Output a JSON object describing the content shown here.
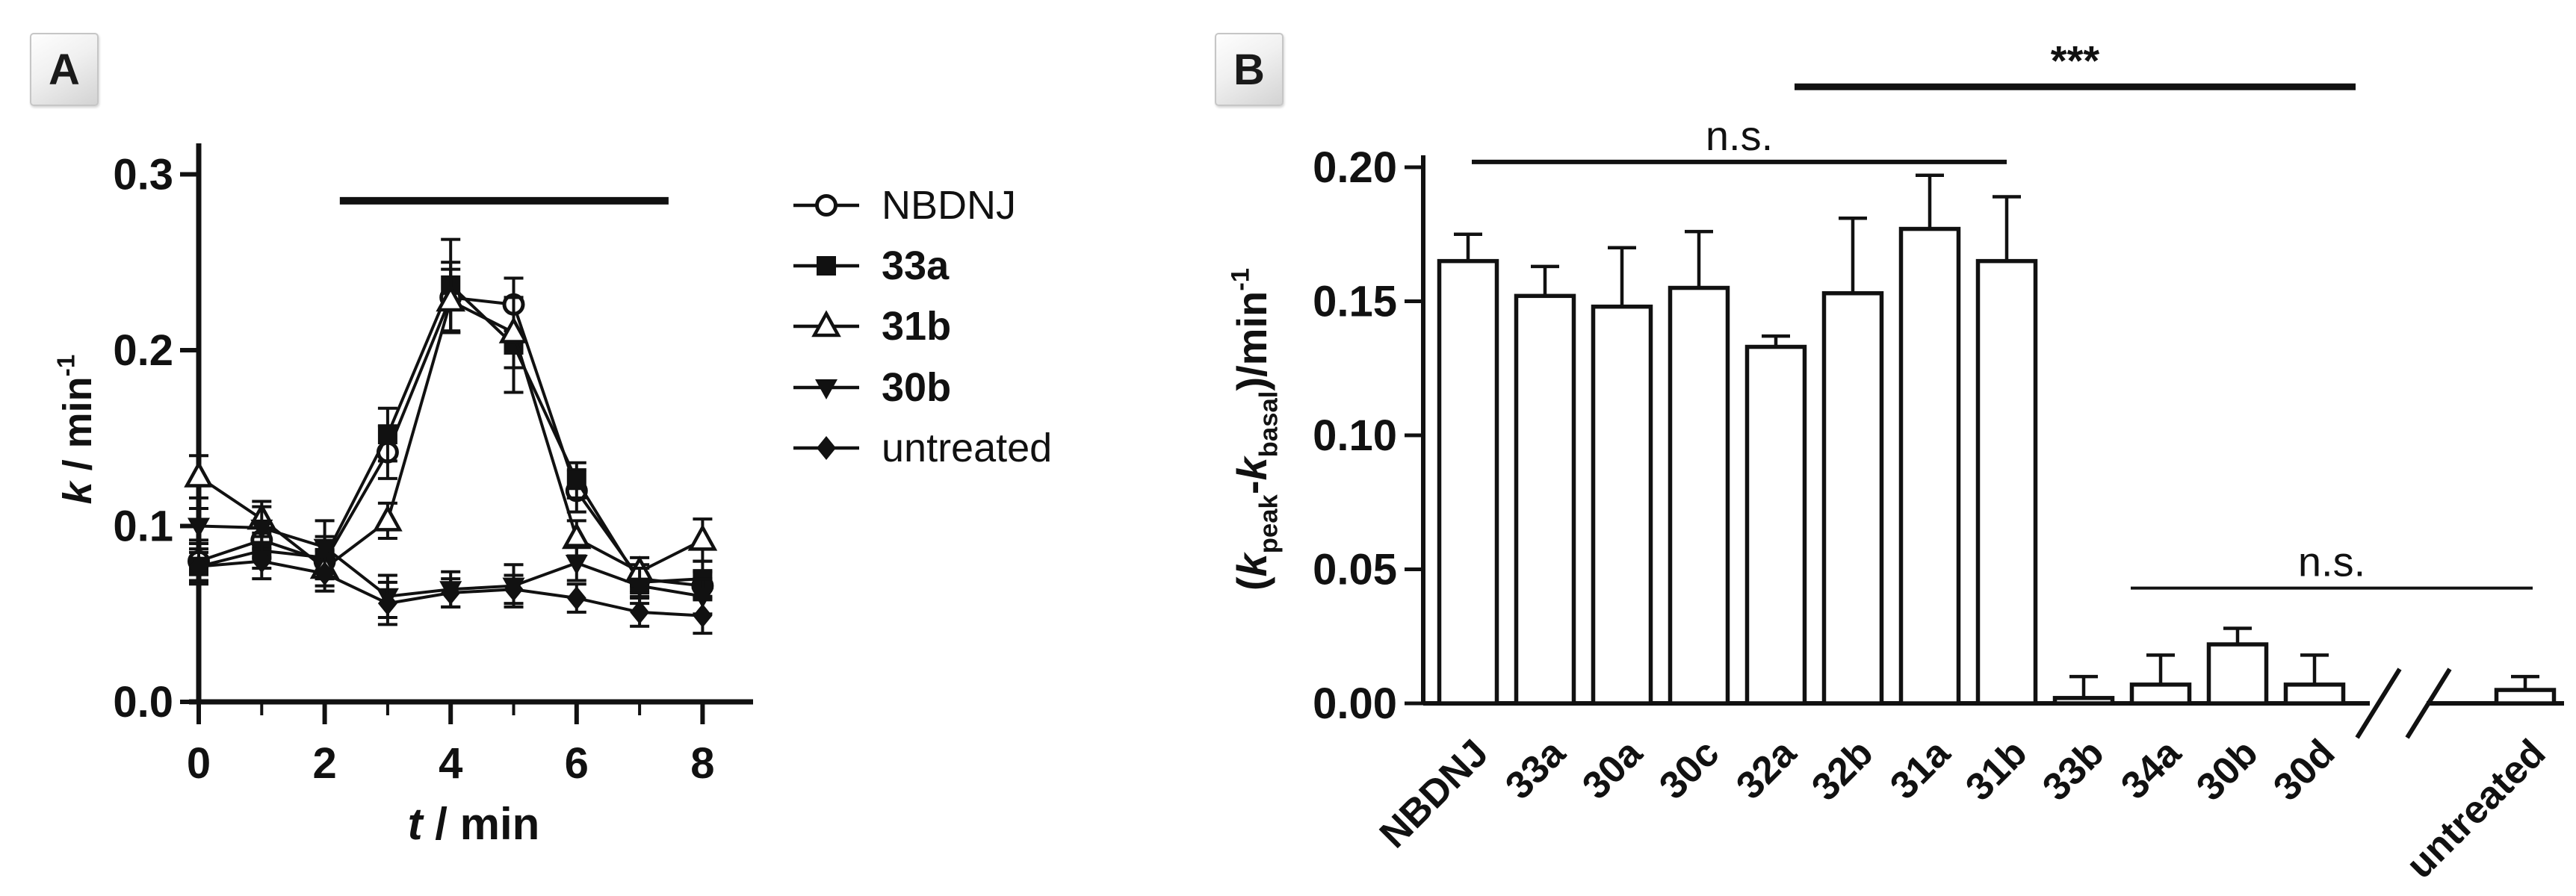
{
  "figure": {
    "background": "#ffffff",
    "ink_color": "#111111",
    "panel_a_label": "A",
    "panel_b_label": "B"
  },
  "chart_data": [
    {
      "type": "line",
      "panel": "A",
      "title": "",
      "xlabel_rich": [
        {
          "t": "t",
          "k": "italic"
        },
        {
          "t": " / min",
          "k": "normal"
        }
      ],
      "ylabel_rich": [
        {
          "t": "k",
          "k": "italic"
        },
        {
          "t": " / min",
          "k": "normal"
        },
        {
          "t": "-1",
          "k": "sup"
        }
      ],
      "x": [
        0,
        1,
        2,
        3,
        4,
        5,
        6,
        7,
        8
      ],
      "xticks": [
        0,
        2,
        4,
        6,
        8
      ],
      "xticks_minor": [
        1,
        3,
        5,
        7
      ],
      "yticks": [
        0.0,
        0.1,
        0.2,
        0.3
      ],
      "xlim": [
        0,
        8.8
      ],
      "ylim": [
        0,
        0.3
      ],
      "grid": false,
      "treatment_bar": {
        "t_start": 2.24,
        "t_end": 7.46,
        "k": 0.285
      },
      "series": [
        {
          "name": "NBDNJ",
          "marker": "open-circle",
          "bold": false,
          "values": [
            0.08,
            0.092,
            0.08,
            0.142,
            0.23,
            0.226,
            0.12,
            0.07,
            0.066
          ],
          "errors": [
            0.012,
            0.01,
            0.01,
            0.015,
            0.02,
            0.015,
            0.012,
            0.008,
            0.008
          ]
        },
        {
          "name": "33a",
          "marker": "filled-square",
          "bold": true,
          "values": [
            0.077,
            0.086,
            0.082,
            0.152,
            0.237,
            0.203,
            0.126,
            0.068,
            0.07
          ],
          "errors": [
            0.01,
            0.01,
            0.012,
            0.015,
            0.026,
            0.027,
            0.01,
            0.008,
            0.01
          ]
        },
        {
          "name": "31b",
          "marker": "open-triangle",
          "bold": true,
          "values": [
            0.128,
            0.104,
            0.076,
            0.103,
            0.228,
            0.21,
            0.093,
            0.074,
            0.092
          ],
          "errors": [
            0.012,
            0.01,
            0.01,
            0.01,
            0.018,
            0.02,
            0.01,
            0.008,
            0.012
          ]
        },
        {
          "name": "30b",
          "marker": "filled-triangle-down",
          "bold": true,
          "values": [
            0.1,
            0.099,
            0.088,
            0.06,
            0.064,
            0.066,
            0.079,
            0.066,
            0.06
          ],
          "errors": [
            0.01,
            0.012,
            0.015,
            0.012,
            0.01,
            0.012,
            0.01,
            0.01,
            0.01
          ]
        },
        {
          "name": "untreated",
          "marker": "filled-diamond",
          "bold": false,
          "values": [
            0.077,
            0.08,
            0.073,
            0.056,
            0.062,
            0.064,
            0.059,
            0.051,
            0.049
          ],
          "errors": [
            0.008,
            0.01,
            0.01,
            0.012,
            0.008,
            0.008,
            0.008,
            0.008,
            0.01
          ]
        }
      ],
      "legend": {
        "position": "right-of-plot"
      }
    },
    {
      "type": "bar",
      "panel": "B",
      "title": "",
      "xlabel": "",
      "ylabel_rich": [
        {
          "t": "(",
          "k": "normal"
        },
        {
          "t": "k",
          "k": "italic"
        },
        {
          "t": "peak",
          "k": "sub"
        },
        {
          "t": "-",
          "k": "normal"
        },
        {
          "t": "k",
          "k": "italic"
        },
        {
          "t": "basal",
          "k": "sub"
        },
        {
          "t": ")/min",
          "k": "normal"
        },
        {
          "t": "-1",
          "k": "sup"
        }
      ],
      "categories": [
        "NBDNJ",
        "33a",
        "30a",
        "30c",
        "32a",
        "32b",
        "31a",
        "31b",
        "33b",
        "34a",
        "30b",
        "30d",
        "untreated"
      ],
      "values": [
        0.165,
        0.152,
        0.148,
        0.155,
        0.133,
        0.153,
        0.177,
        0.165,
        0.002,
        0.007,
        0.022,
        0.007,
        0.005
      ],
      "errors": [
        0.01,
        0.011,
        0.022,
        0.021,
        0.004,
        0.028,
        0.02,
        0.024,
        0.008,
        0.011,
        0.006,
        0.011,
        0.005
      ],
      "yticks": [
        0.0,
        0.05,
        0.1,
        0.15,
        0.2
      ],
      "ylim": [
        0,
        0.2
      ],
      "grid": false,
      "bar_fill": "#ffffff",
      "bar_stroke": "#111111",
      "axis_break": {
        "after_category": "30d",
        "before_category": "untreated"
      },
      "annotations": [
        {
          "text": "n.s.",
          "from": 0,
          "to": 7,
          "from_off": 5,
          "to_off": 0,
          "value": 0.202,
          "weight": "normal",
          "thickness": 6
        },
        {
          "text": "***",
          "from": 4,
          "to": 11,
          "from_off": 25,
          "to_off": 55,
          "value": 0.23,
          "weight": "bold",
          "thickness": 9
        },
        {
          "text": "n.s.",
          "from": 9,
          "to": 12,
          "from_off": -40,
          "to_off": 10,
          "value": 0.043,
          "weight": "normal",
          "thickness": 4
        }
      ]
    }
  ]
}
